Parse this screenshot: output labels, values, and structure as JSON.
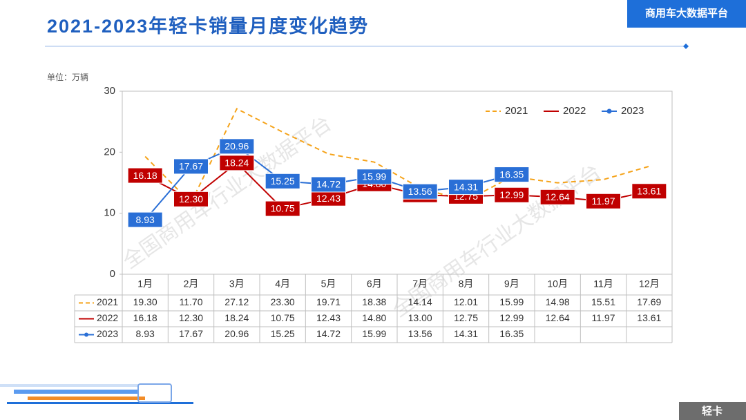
{
  "header_tag": "商用车大数据平台",
  "footer_tag": "轻卡",
  "watermark": "全国商用车行业大数据平台",
  "chart_data": {
    "type": "line",
    "title": "2021-2023年轻卡销量月度变化趋势",
    "unit_label": "单位：万辆",
    "categories": [
      "1月",
      "2月",
      "3月",
      "4月",
      "5月",
      "6月",
      "7月",
      "8月",
      "9月",
      "10月",
      "11月",
      "12月"
    ],
    "ylim": [
      0,
      30
    ],
    "yticks": [
      0,
      10,
      20,
      30
    ],
    "grid": false,
    "legend": "top-right",
    "series": [
      {
        "name": "2021",
        "color": "#f5a31a",
        "dashed": true,
        "markers": false,
        "boxed_labels": false,
        "values": [
          19.3,
          11.7,
          27.12,
          23.3,
          19.71,
          18.38,
          14.14,
          12.01,
          15.99,
          14.98,
          15.51,
          17.69
        ],
        "value_labels": [
          "19.30",
          "11.70",
          "27.12",
          "23.30",
          "19.71",
          "18.38",
          "14.14",
          "12.01",
          "15.99",
          "14.98",
          "15.51",
          "17.69"
        ]
      },
      {
        "name": "2022",
        "color": "#c00000",
        "dashed": false,
        "markers": false,
        "boxed_labels": true,
        "values": [
          16.18,
          12.3,
          18.24,
          10.75,
          12.43,
          14.8,
          13.0,
          12.75,
          12.99,
          12.64,
          11.97,
          13.61
        ],
        "value_labels": [
          "16.18",
          "12.30",
          "18.24",
          "10.75",
          "12.43",
          "14.80",
          "13.00",
          "12.75",
          "12.99",
          "12.64",
          "11.97",
          "13.61"
        ]
      },
      {
        "name": "2023",
        "color": "#2a6fd6",
        "dashed": false,
        "markers": true,
        "boxed_labels": true,
        "values": [
          8.93,
          17.67,
          20.96,
          15.25,
          14.72,
          15.99,
          13.56,
          14.31,
          16.35,
          null,
          null,
          null
        ],
        "value_labels": [
          "8.93",
          "17.67",
          "20.96",
          "15.25",
          "14.72",
          "15.99",
          "13.56",
          "14.31",
          "16.35",
          null,
          null,
          null
        ]
      }
    ]
  }
}
